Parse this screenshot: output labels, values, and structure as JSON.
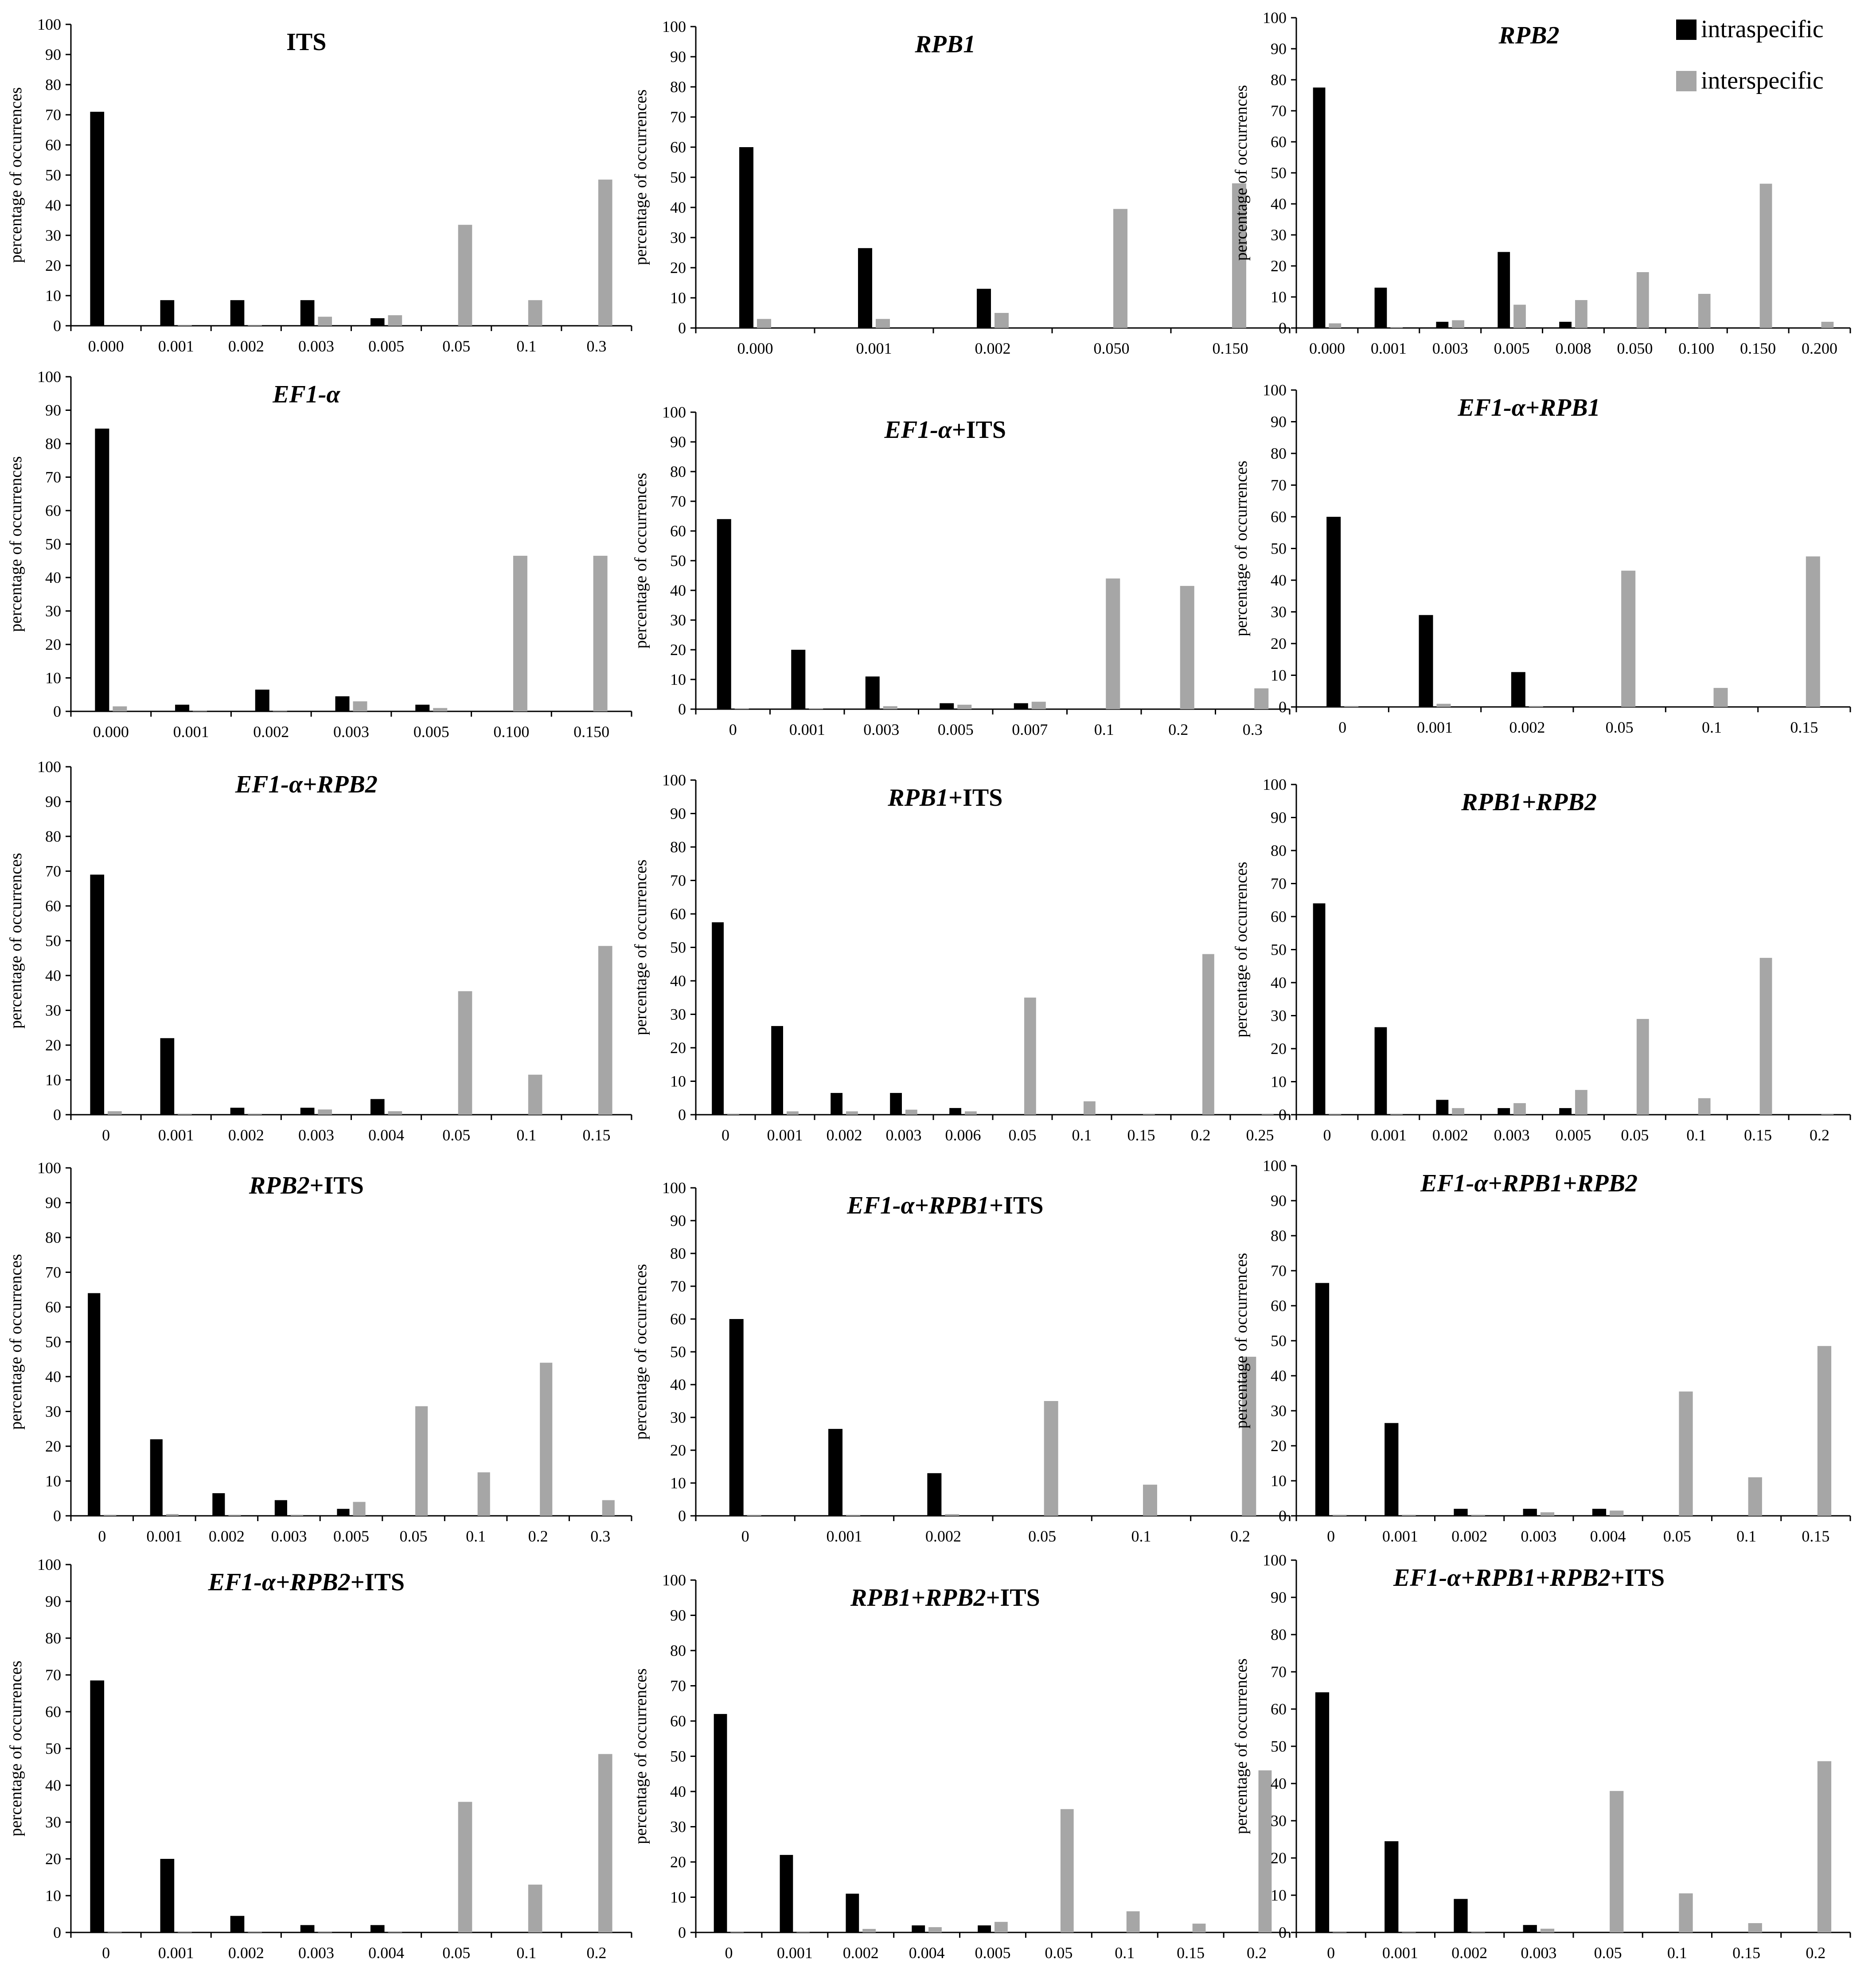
{
  "legend": {
    "intraspecific": "intraspecific",
    "interspecific": "interspecific"
  },
  "colors": {
    "intraspecific": "#000000",
    "interspecific": "#a6a6a6"
  },
  "chart_data": [
    {
      "type": "bar",
      "title": [
        {
          "t": "ITS",
          "i": false
        }
      ],
      "ylabel": "percentage of occurrences",
      "ylim": [
        0,
        100
      ],
      "categories": [
        "0.000",
        "0.001",
        "0.002",
        "0.003",
        "0.005",
        "0.05",
        "0.1",
        "0.3"
      ],
      "series": [
        {
          "name": "intraspecific",
          "values": [
            71,
            8.5,
            8.5,
            8.5,
            2.5,
            0,
            0,
            0
          ]
        },
        {
          "name": "interspecific",
          "values": [
            0,
            0.3,
            0.3,
            3,
            3.5,
            33.5,
            8.5,
            48.5
          ]
        }
      ]
    },
    {
      "type": "bar",
      "title": [
        {
          "t": "RPB1",
          "i": true
        }
      ],
      "ylabel": "percentage of occurrences",
      "ylim": [
        0,
        100
      ],
      "categories": [
        "0.000",
        "0.001",
        "0.002",
        "0.050",
        "0.150"
      ],
      "series": [
        {
          "name": "intraspecific",
          "values": [
            60,
            26.5,
            13,
            0,
            0
          ]
        },
        {
          "name": "interspecific",
          "values": [
            3,
            3,
            5,
            39.5,
            48
          ]
        }
      ]
    },
    {
      "type": "bar",
      "title": [
        {
          "t": "RPB2",
          "i": true
        }
      ],
      "ylabel": "percentage of occurrences",
      "ylim": [
        0,
        100
      ],
      "categories": [
        "0.000",
        "0.001",
        "0.003",
        "0.005",
        "0.008",
        "0.050",
        "0.100",
        "0.150",
        "0.200"
      ],
      "series": [
        {
          "name": "intraspecific",
          "values": [
            77.5,
            13,
            2,
            24.5,
            2,
            0,
            0,
            0,
            0
          ]
        },
        {
          "name": "interspecific",
          "values": [
            1.5,
            0.3,
            2.5,
            7.5,
            9,
            18,
            11,
            46.5,
            2
          ]
        }
      ]
    },
    {
      "type": "bar",
      "title": [
        {
          "t": "EF1-α",
          "i": true
        }
      ],
      "ylabel": "percentage of occurrences",
      "ylim": [
        0,
        100
      ],
      "categories": [
        "0.000",
        "0.001",
        "0.002",
        "0.003",
        "0.005",
        "0.100",
        "0.150"
      ],
      "series": [
        {
          "name": "intraspecific",
          "values": [
            84.5,
            2,
            6.5,
            4.5,
            2,
            0,
            0
          ]
        },
        {
          "name": "interspecific",
          "values": [
            1.5,
            0.3,
            0.3,
            3,
            1,
            46.5,
            46.5
          ]
        }
      ]
    },
    {
      "type": "bar",
      "title": [
        {
          "t": "EF1-α",
          "i": true
        },
        {
          "t": "+ITS",
          "i": false
        }
      ],
      "ylabel": "percentage of occurrences",
      "ylim": [
        0,
        100
      ],
      "categories": [
        "0",
        "0.001",
        "0.003",
        "0.005",
        "0.007",
        "0.1",
        "0.2",
        "0.3"
      ],
      "series": [
        {
          "name": "intraspecific",
          "values": [
            64,
            20,
            11,
            2,
            2,
            0,
            0,
            0
          ]
        },
        {
          "name": "interspecific",
          "values": [
            0.3,
            0.3,
            1,
            1.5,
            2.5,
            44,
            41.5,
            7
          ]
        }
      ]
    },
    {
      "type": "bar",
      "title": [
        {
          "t": "EF1-α+RPB1",
          "i": true
        }
      ],
      "ylabel": "percentage of occurrences",
      "ylim": [
        0,
        100
      ],
      "categories": [
        "0",
        "0.001",
        "0.002",
        "0.05",
        "0.1",
        "0.15"
      ],
      "series": [
        {
          "name": "intraspecific",
          "values": [
            60,
            29,
            11,
            0,
            0,
            0
          ]
        },
        {
          "name": "interspecific",
          "values": [
            0.3,
            1,
            0.3,
            43,
            6,
            47.5
          ]
        }
      ]
    },
    {
      "type": "bar",
      "title": [
        {
          "t": "EF1-α+RPB2",
          "i": true
        }
      ],
      "ylabel": "percentage of occurrences",
      "ylim": [
        0,
        100
      ],
      "categories": [
        "0",
        "0.001",
        "0.002",
        "0.003",
        "0.004",
        "0.05",
        "0.1",
        "0.15"
      ],
      "series": [
        {
          "name": "intraspecific",
          "values": [
            69,
            22,
            2,
            2,
            4.5,
            0,
            0,
            0
          ]
        },
        {
          "name": "interspecific",
          "values": [
            1,
            0.3,
            0.3,
            1.5,
            1,
            35.5,
            11.5,
            48.5
          ]
        }
      ]
    },
    {
      "type": "bar",
      "title": [
        {
          "t": "RPB1",
          "i": true
        },
        {
          "t": "+ITS",
          "i": false
        }
      ],
      "ylabel": "percentage of occurrences",
      "ylim": [
        0,
        100
      ],
      "categories": [
        "0",
        "0.001",
        "0.002",
        "0.003",
        "0.006",
        "0.05",
        "0.1",
        "0.15",
        "0.2",
        "0.25"
      ],
      "series": [
        {
          "name": "intraspecific",
          "values": [
            57.5,
            26.5,
            6.5,
            6.5,
            2,
            0,
            0,
            0,
            0,
            0
          ]
        },
        {
          "name": "interspecific",
          "values": [
            0.3,
            1,
            1,
            1.5,
            1,
            35,
            4,
            0.3,
            48,
            0.3
          ]
        }
      ]
    },
    {
      "type": "bar",
      "title": [
        {
          "t": "RPB1+RPB2",
          "i": true
        }
      ],
      "ylabel": "percentage of occurrences",
      "ylim": [
        0,
        100
      ],
      "categories": [
        "0",
        "0.001",
        "0.002",
        "0.003",
        "0.005",
        "0.05",
        "0.1",
        "0.15",
        "0.2"
      ],
      "series": [
        {
          "name": "intraspecific",
          "values": [
            64,
            26.5,
            4.5,
            2,
            2,
            0,
            0,
            0,
            0
          ]
        },
        {
          "name": "interspecific",
          "values": [
            0.3,
            0.3,
            2,
            3.5,
            7.5,
            29,
            5,
            47.5,
            0.3
          ]
        }
      ]
    },
    {
      "type": "bar",
      "title": [
        {
          "t": "RPB2",
          "i": true
        },
        {
          "t": "+ITS",
          "i": false
        }
      ],
      "ylabel": "percentage of occurrences",
      "ylim": [
        0,
        100
      ],
      "categories": [
        "0",
        "0.001",
        "0.002",
        "0.003",
        "0.005",
        "0.05",
        "0.1",
        "0.2",
        "0.3"
      ],
      "series": [
        {
          "name": "intraspecific",
          "values": [
            64,
            22,
            6.5,
            4.5,
            2,
            0,
            0,
            0,
            0
          ]
        },
        {
          "name": "interspecific",
          "values": [
            0.3,
            0.5,
            0.3,
            0.3,
            4,
            31.5,
            12.5,
            44,
            4.5
          ]
        }
      ]
    },
    {
      "type": "bar",
      "title": [
        {
          "t": "EF1-α+RPB1",
          "i": true
        },
        {
          "t": "+ITS",
          "i": false
        }
      ],
      "ylabel": "percentage of occurrences",
      "ylim": [
        0,
        100
      ],
      "categories": [
        "0",
        "0.001",
        "0.002",
        "0.05",
        "0.1",
        "0.2"
      ],
      "series": [
        {
          "name": "intraspecific",
          "values": [
            60,
            26.5,
            13,
            0,
            0,
            0
          ]
        },
        {
          "name": "interspecific",
          "values": [
            0.3,
            0.3,
            0.5,
            35,
            9.5,
            48.5
          ]
        }
      ]
    },
    {
      "type": "bar",
      "title": [
        {
          "t": "EF1-α+RPB1+RPB2",
          "i": true
        }
      ],
      "ylabel": "percentage of occurrences",
      "ylim": [
        0,
        100
      ],
      "categories": [
        "0",
        "0.001",
        "0.002",
        "0.003",
        "0.004",
        "0.05",
        "0.1",
        "0.15"
      ],
      "series": [
        {
          "name": "intraspecific",
          "values": [
            66.5,
            26.5,
            2,
            2,
            2,
            0,
            0,
            0
          ]
        },
        {
          "name": "interspecific",
          "values": [
            0.3,
            0.3,
            0.3,
            1,
            1.5,
            35.5,
            11,
            48.5
          ]
        }
      ]
    },
    {
      "type": "bar",
      "title": [
        {
          "t": "EF1-α+RPB2",
          "i": true
        },
        {
          "t": "+ITS",
          "i": false
        }
      ],
      "ylabel": "percentage of occurrences",
      "ylim": [
        0,
        100
      ],
      "categories": [
        "0",
        "0.001",
        "0.002",
        "0.003",
        "0.004",
        "0.05",
        "0.1",
        "0.2"
      ],
      "series": [
        {
          "name": "intraspecific",
          "values": [
            68.5,
            20,
            4.5,
            2,
            2,
            0,
            0,
            0
          ]
        },
        {
          "name": "interspecific",
          "values": [
            0.3,
            0.3,
            0.3,
            0.3,
            0.3,
            35.5,
            13,
            48.5
          ]
        }
      ]
    },
    {
      "type": "bar",
      "title": [
        {
          "t": "RPB1+RPB2",
          "i": true
        },
        {
          "t": "+ITS",
          "i": false
        }
      ],
      "ylabel": "percentage of occurrences",
      "ylim": [
        0,
        100
      ],
      "categories": [
        "0",
        "0.001",
        "0.002",
        "0.004",
        "0.005",
        "0.05",
        "0.1",
        "0.15",
        "0.2"
      ],
      "series": [
        {
          "name": "intraspecific",
          "values": [
            62,
            22,
            11,
            2,
            2,
            0,
            0,
            0,
            0
          ]
        },
        {
          "name": "interspecific",
          "values": [
            0.3,
            0.3,
            1,
            1.5,
            3,
            35,
            6,
            2.5,
            46
          ]
        }
      ]
    },
    {
      "type": "bar",
      "title": [
        {
          "t": "EF1-α+RPB1+RPB2",
          "i": true
        },
        {
          "t": "+ITS",
          "i": false
        }
      ],
      "ylabel": "percentage of occurrences",
      "ylim": [
        0,
        100
      ],
      "categories": [
        "0",
        "0.001",
        "0.002",
        "0.003",
        "0.05",
        "0.1",
        "0.15",
        "0.2"
      ],
      "series": [
        {
          "name": "intraspecific",
          "values": [
            64.5,
            24.5,
            9,
            2,
            0,
            0,
            0,
            0
          ]
        },
        {
          "name": "interspecific",
          "values": [
            0.3,
            0.3,
            0.3,
            1,
            38,
            10.5,
            2.5,
            46
          ]
        }
      ]
    }
  ]
}
